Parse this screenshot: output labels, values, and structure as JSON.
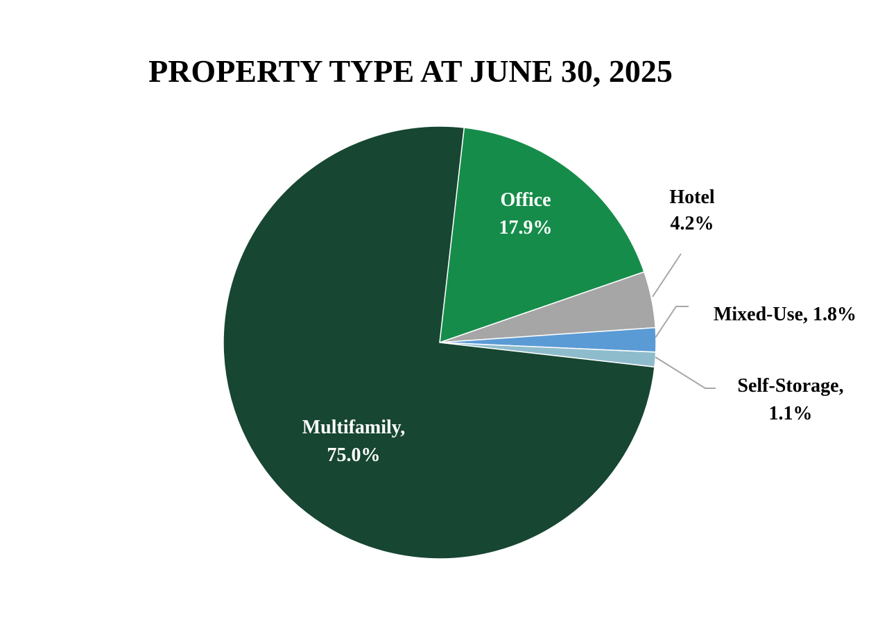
{
  "chart_data": {
    "type": "pie",
    "title": "PROPERTY TYPE AT JUNE 30, 2025",
    "slices": [
      {
        "name": "Office",
        "value": 17.9,
        "color": "#168c4a",
        "label_lines": [
          "Office",
          "17.9%"
        ],
        "label_color": "#ffffff",
        "label_position": "inside"
      },
      {
        "name": "Hotel",
        "value": 4.2,
        "color": "#a6a6a6",
        "label_lines": [
          "Hotel",
          "4.2%"
        ],
        "label_color": "#000000",
        "label_position": "outside",
        "leader_color": "#a6a6a6"
      },
      {
        "name": "Mixed-Use",
        "value": 1.8,
        "color": "#5b9bd5",
        "label_lines": [
          "Mixed-Use, 1.8%"
        ],
        "label_color": "#000000",
        "label_position": "outside",
        "leader_color": "#a6a6a6"
      },
      {
        "name": "Self-Storage",
        "value": 1.1,
        "color": "#8fbccc",
        "label_lines": [
          "Self-Storage,",
          "1.1%"
        ],
        "label_color": "#000000",
        "label_position": "outside",
        "leader_color": "#a6a6a6"
      },
      {
        "name": "Multifamily",
        "value": 75.0,
        "color": "#174632",
        "label_lines": [
          "Multifamily,",
          "75.0%"
        ],
        "label_color": "#ffffff",
        "label_position": "inside"
      }
    ],
    "legend": "none"
  }
}
